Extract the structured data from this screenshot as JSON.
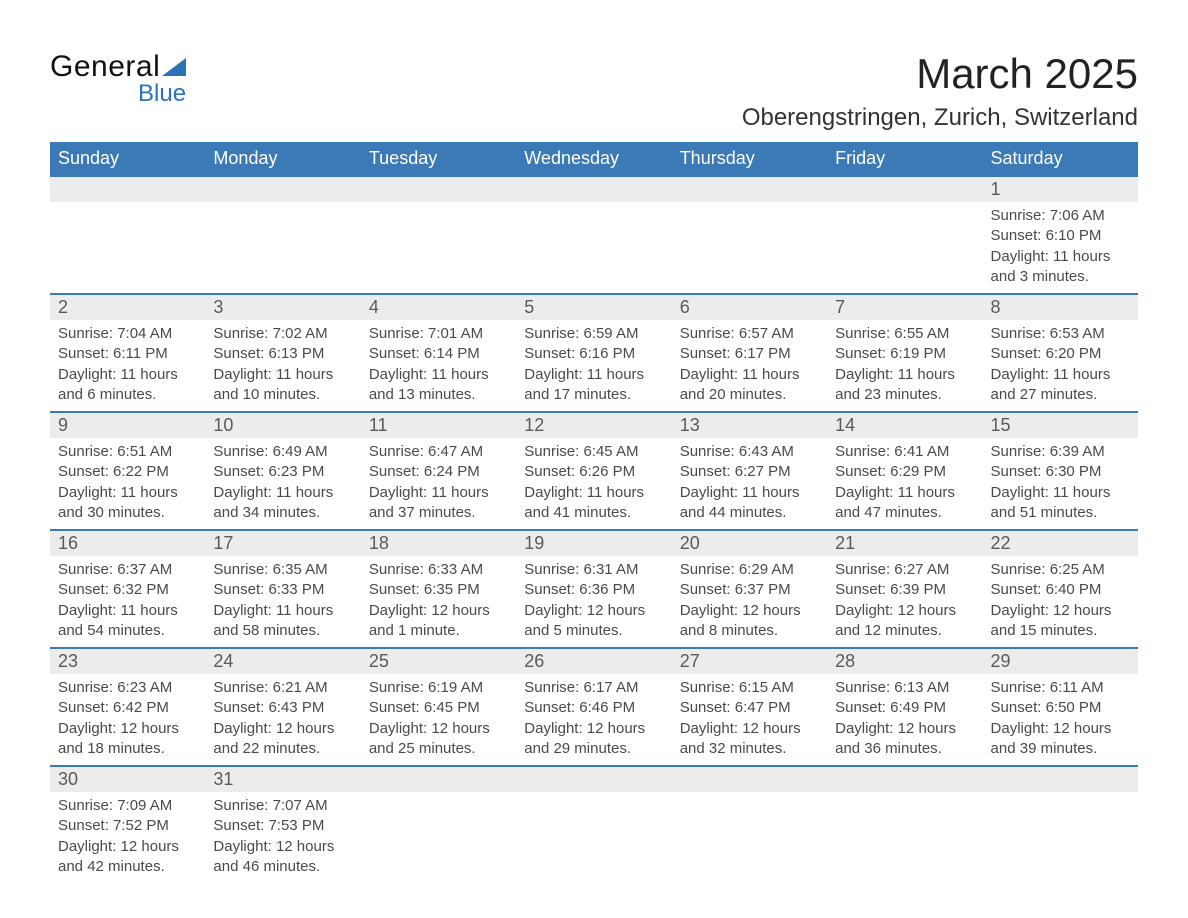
{
  "logo": {
    "text_top": "General",
    "text_bottom": "Blue",
    "accent_color": "#2a73b6"
  },
  "title": "March 2025",
  "location": "Oberengstringen, Zurich, Switzerland",
  "calendar": {
    "type": "table",
    "header_bg": "#3b79b7",
    "header_fg": "#ffffff",
    "daynum_bg": "#ececec",
    "row_separator_color": "#3b79b7",
    "text_color": "#4a4a4a",
    "columns": [
      "Sunday",
      "Monday",
      "Tuesday",
      "Wednesday",
      "Thursday",
      "Friday",
      "Saturday"
    ],
    "weeks": [
      [
        null,
        null,
        null,
        null,
        null,
        null,
        {
          "d": "1",
          "sr": "Sunrise: 7:06 AM",
          "ss": "Sunset: 6:10 PM",
          "dl1": "Daylight: 11 hours",
          "dl2": "and 3 minutes."
        }
      ],
      [
        {
          "d": "2",
          "sr": "Sunrise: 7:04 AM",
          "ss": "Sunset: 6:11 PM",
          "dl1": "Daylight: 11 hours",
          "dl2": "and 6 minutes."
        },
        {
          "d": "3",
          "sr": "Sunrise: 7:02 AM",
          "ss": "Sunset: 6:13 PM",
          "dl1": "Daylight: 11 hours",
          "dl2": "and 10 minutes."
        },
        {
          "d": "4",
          "sr": "Sunrise: 7:01 AM",
          "ss": "Sunset: 6:14 PM",
          "dl1": "Daylight: 11 hours",
          "dl2": "and 13 minutes."
        },
        {
          "d": "5",
          "sr": "Sunrise: 6:59 AM",
          "ss": "Sunset: 6:16 PM",
          "dl1": "Daylight: 11 hours",
          "dl2": "and 17 minutes."
        },
        {
          "d": "6",
          "sr": "Sunrise: 6:57 AM",
          "ss": "Sunset: 6:17 PM",
          "dl1": "Daylight: 11 hours",
          "dl2": "and 20 minutes."
        },
        {
          "d": "7",
          "sr": "Sunrise: 6:55 AM",
          "ss": "Sunset: 6:19 PM",
          "dl1": "Daylight: 11 hours",
          "dl2": "and 23 minutes."
        },
        {
          "d": "8",
          "sr": "Sunrise: 6:53 AM",
          "ss": "Sunset: 6:20 PM",
          "dl1": "Daylight: 11 hours",
          "dl2": "and 27 minutes."
        }
      ],
      [
        {
          "d": "9",
          "sr": "Sunrise: 6:51 AM",
          "ss": "Sunset: 6:22 PM",
          "dl1": "Daylight: 11 hours",
          "dl2": "and 30 minutes."
        },
        {
          "d": "10",
          "sr": "Sunrise: 6:49 AM",
          "ss": "Sunset: 6:23 PM",
          "dl1": "Daylight: 11 hours",
          "dl2": "and 34 minutes."
        },
        {
          "d": "11",
          "sr": "Sunrise: 6:47 AM",
          "ss": "Sunset: 6:24 PM",
          "dl1": "Daylight: 11 hours",
          "dl2": "and 37 minutes."
        },
        {
          "d": "12",
          "sr": "Sunrise: 6:45 AM",
          "ss": "Sunset: 6:26 PM",
          "dl1": "Daylight: 11 hours",
          "dl2": "and 41 minutes."
        },
        {
          "d": "13",
          "sr": "Sunrise: 6:43 AM",
          "ss": "Sunset: 6:27 PM",
          "dl1": "Daylight: 11 hours",
          "dl2": "and 44 minutes."
        },
        {
          "d": "14",
          "sr": "Sunrise: 6:41 AM",
          "ss": "Sunset: 6:29 PM",
          "dl1": "Daylight: 11 hours",
          "dl2": "and 47 minutes."
        },
        {
          "d": "15",
          "sr": "Sunrise: 6:39 AM",
          "ss": "Sunset: 6:30 PM",
          "dl1": "Daylight: 11 hours",
          "dl2": "and 51 minutes."
        }
      ],
      [
        {
          "d": "16",
          "sr": "Sunrise: 6:37 AM",
          "ss": "Sunset: 6:32 PM",
          "dl1": "Daylight: 11 hours",
          "dl2": "and 54 minutes."
        },
        {
          "d": "17",
          "sr": "Sunrise: 6:35 AM",
          "ss": "Sunset: 6:33 PM",
          "dl1": "Daylight: 11 hours",
          "dl2": "and 58 minutes."
        },
        {
          "d": "18",
          "sr": "Sunrise: 6:33 AM",
          "ss": "Sunset: 6:35 PM",
          "dl1": "Daylight: 12 hours",
          "dl2": "and 1 minute."
        },
        {
          "d": "19",
          "sr": "Sunrise: 6:31 AM",
          "ss": "Sunset: 6:36 PM",
          "dl1": "Daylight: 12 hours",
          "dl2": "and 5 minutes."
        },
        {
          "d": "20",
          "sr": "Sunrise: 6:29 AM",
          "ss": "Sunset: 6:37 PM",
          "dl1": "Daylight: 12 hours",
          "dl2": "and 8 minutes."
        },
        {
          "d": "21",
          "sr": "Sunrise: 6:27 AM",
          "ss": "Sunset: 6:39 PM",
          "dl1": "Daylight: 12 hours",
          "dl2": "and 12 minutes."
        },
        {
          "d": "22",
          "sr": "Sunrise: 6:25 AM",
          "ss": "Sunset: 6:40 PM",
          "dl1": "Daylight: 12 hours",
          "dl2": "and 15 minutes."
        }
      ],
      [
        {
          "d": "23",
          "sr": "Sunrise: 6:23 AM",
          "ss": "Sunset: 6:42 PM",
          "dl1": "Daylight: 12 hours",
          "dl2": "and 18 minutes."
        },
        {
          "d": "24",
          "sr": "Sunrise: 6:21 AM",
          "ss": "Sunset: 6:43 PM",
          "dl1": "Daylight: 12 hours",
          "dl2": "and 22 minutes."
        },
        {
          "d": "25",
          "sr": "Sunrise: 6:19 AM",
          "ss": "Sunset: 6:45 PM",
          "dl1": "Daylight: 12 hours",
          "dl2": "and 25 minutes."
        },
        {
          "d": "26",
          "sr": "Sunrise: 6:17 AM",
          "ss": "Sunset: 6:46 PM",
          "dl1": "Daylight: 12 hours",
          "dl2": "and 29 minutes."
        },
        {
          "d": "27",
          "sr": "Sunrise: 6:15 AM",
          "ss": "Sunset: 6:47 PM",
          "dl1": "Daylight: 12 hours",
          "dl2": "and 32 minutes."
        },
        {
          "d": "28",
          "sr": "Sunrise: 6:13 AM",
          "ss": "Sunset: 6:49 PM",
          "dl1": "Daylight: 12 hours",
          "dl2": "and 36 minutes."
        },
        {
          "d": "29",
          "sr": "Sunrise: 6:11 AM",
          "ss": "Sunset: 6:50 PM",
          "dl1": "Daylight: 12 hours",
          "dl2": "and 39 minutes."
        }
      ],
      [
        {
          "d": "30",
          "sr": "Sunrise: 7:09 AM",
          "ss": "Sunset: 7:52 PM",
          "dl1": "Daylight: 12 hours",
          "dl2": "and 42 minutes."
        },
        {
          "d": "31",
          "sr": "Sunrise: 7:07 AM",
          "ss": "Sunset: 7:53 PM",
          "dl1": "Daylight: 12 hours",
          "dl2": "and 46 minutes."
        },
        null,
        null,
        null,
        null,
        null
      ]
    ]
  }
}
